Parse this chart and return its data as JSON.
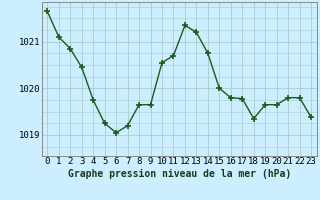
{
  "x": [
    0,
    1,
    2,
    3,
    4,
    5,
    6,
    7,
    8,
    9,
    10,
    11,
    12,
    13,
    14,
    15,
    16,
    17,
    18,
    19,
    20,
    21,
    22,
    23
  ],
  "y": [
    1021.65,
    1021.1,
    1020.85,
    1020.45,
    1019.75,
    1019.25,
    1019.05,
    1019.2,
    1019.65,
    1019.65,
    1020.55,
    1020.7,
    1021.35,
    1021.2,
    1020.75,
    1020.0,
    1019.8,
    1019.78,
    1019.35,
    1019.65,
    1019.65,
    1019.8,
    1019.8,
    1019.38
  ],
  "line_color": "#1a5c1a",
  "marker_color": "#1a5c1a",
  "bg_color": "#cceeff",
  "grid_color": "#aacccc",
  "xlabel": "Graphe pression niveau de la mer (hPa)",
  "xlabel_fontsize": 7,
  "ylabel_ticks": [
    1019,
    1020,
    1021
  ],
  "ylim": [
    1018.55,
    1021.85
  ],
  "xlim": [
    -0.5,
    23.5
  ],
  "tick_fontsize": 6.5,
  "line_width": 1.0,
  "marker_size": 4
}
